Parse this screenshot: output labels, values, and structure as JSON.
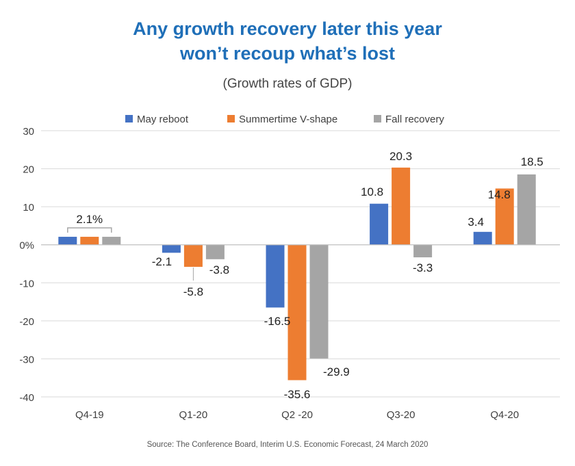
{
  "title_line1": "Any growth recovery later this year",
  "title_line2": "won’t recoup what’s lost",
  "subtitle": "(Growth rates of GDP)",
  "source": "Source: The Conference Board, Interim U.S. Economic Forecast, 24 March 2020",
  "chart_data": {
    "type": "bar",
    "categories": [
      "Q4-19",
      "Q1-20",
      "Q2 -20",
      "Q3-20",
      "Q4-20"
    ],
    "series": [
      {
        "name": "May reboot",
        "color": "#4472c4",
        "values": [
          2.1,
          -2.1,
          -16.5,
          10.8,
          3.4
        ]
      },
      {
        "name": "Summertime V-shape",
        "color": "#ed7d31",
        "values": [
          2.1,
          -5.8,
          -35.6,
          20.3,
          14.8
        ]
      },
      {
        "name": "Fall recovery",
        "color": "#a5a5a5",
        "values": [
          2.1,
          -3.8,
          -29.9,
          -3.3,
          18.5
        ]
      }
    ],
    "data_labels": [
      [
        "2.1%",
        "",
        ""
      ],
      [
        "-2.1",
        "-5.8",
        "-3.8"
      ],
      [
        "-16.5",
        "-35.6",
        "-29.9"
      ],
      [
        "10.8",
        "20.3",
        "-3.3"
      ],
      [
        "3.4",
        "14.8",
        "18.5"
      ]
    ],
    "ylim": [
      -40,
      30
    ],
    "yticks": [
      30,
      20,
      10,
      0,
      -10,
      -20,
      -30,
      -40
    ],
    "ytick_labels": [
      "30",
      "20",
      "10",
      "0%",
      "-10",
      "-20",
      "-30",
      "-40"
    ],
    "legend_position": "top",
    "grid": true
  }
}
